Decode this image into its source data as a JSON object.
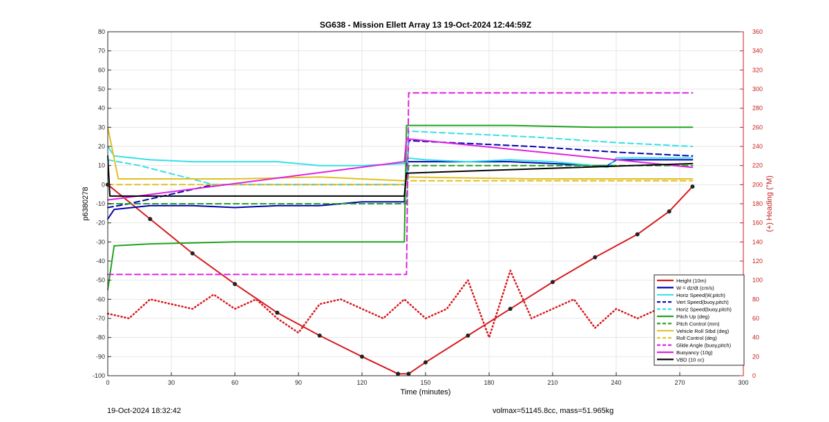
{
  "footer": {
    "timestamp": "19-Oct-2024 18:32:42",
    "volmax_mass": "volmax=51145.8cc, mass=51.965kg"
  },
  "chart_data": {
    "type": "line",
    "title": "SG638 - Mission Ellett Array 13 19-Oct-2024 12:44:59Z",
    "xlabel": "Time (minutes)",
    "ylabel_left": "p6380278",
    "ylabel_right": "(+) Heading (°M)",
    "xlim": [
      0,
      300
    ],
    "ylim_left": [
      -100,
      80
    ],
    "ylim_right": [
      0,
      360
    ],
    "xticks": [
      0,
      30,
      60,
      90,
      120,
      150,
      180,
      210,
      240,
      270,
      300
    ],
    "yticks_left": [
      80,
      70,
      60,
      50,
      40,
      30,
      20,
      10,
      0,
      -10,
      -20,
      -30,
      -40,
      -50,
      -60,
      -70,
      -80,
      -90,
      -100
    ],
    "yticks_right": [
      360,
      340,
      320,
      300,
      280,
      260,
      240,
      220,
      200,
      180,
      160,
      140,
      120,
      100,
      80,
      60,
      40,
      20,
      0
    ],
    "grid": true,
    "legend_position": "bottom-right",
    "colors": {
      "red": "#d7191c",
      "blue": "#0000b0",
      "cyan": "#33e0e8",
      "green": "#1fa21f",
      "yellow": "#e0c020",
      "magenta": "#e020e0",
      "black": "#000000",
      "heading_axis": "#c81e1e"
    },
    "series": [
      {
        "name": "Height (10m)",
        "color": "red",
        "style": "solid",
        "x": [
          0,
          20,
          40,
          60,
          80,
          100,
          120,
          137,
          142,
          150,
          170,
          190,
          210,
          230,
          250,
          265,
          276
        ],
        "y": [
          0,
          -18,
          -36,
          -52,
          -67,
          -79,
          -90,
          -99,
          -99,
          -93,
          -79,
          -65,
          -51,
          -38,
          -26,
          -14,
          -1
        ]
      },
      {
        "name": "W = dz/dt (cm/s)",
        "color": "blue",
        "style": "solid",
        "x": [
          0,
          3,
          20,
          40,
          60,
          80,
          100,
          120,
          140,
          141,
          150,
          170,
          190,
          210,
          230,
          236,
          240,
          276
        ],
        "y": [
          -18,
          -13,
          -11,
          -11,
          -12,
          -11,
          -11,
          -9,
          -9,
          12,
          12,
          12,
          12,
          11,
          10,
          10,
          13,
          13
        ]
      },
      {
        "name": "Horiz Speed(W,pitch)",
        "color": "cyan",
        "style": "solid",
        "x": [
          0,
          3,
          20,
          40,
          60,
          80,
          100,
          120,
          140,
          141,
          150,
          170,
          190,
          210,
          230,
          236,
          240,
          276
        ],
        "y": [
          20,
          15,
          13,
          12,
          12,
          12,
          10,
          10,
          11,
          14,
          13,
          12,
          13,
          12,
          10,
          9,
          14,
          14
        ]
      },
      {
        "name": "Vert Speed(buoy,pitch)",
        "color": "blue",
        "style": "dashed",
        "x": [
          0,
          10,
          50,
          141,
          142,
          200,
          240,
          276
        ],
        "y": [
          -12,
          -10,
          0,
          0,
          23,
          20,
          17,
          15
        ]
      },
      {
        "name": "Horiz Speed(buoy,pitch)",
        "color": "cyan",
        "style": "dashed",
        "x": [
          0,
          15,
          50,
          141,
          142,
          200,
          240,
          276
        ],
        "y": [
          13,
          10,
          0,
          0,
          28,
          25,
          22,
          20
        ]
      },
      {
        "name": "Pitch Up (deg)",
        "color": "green",
        "style": "solid",
        "x": [
          0,
          3,
          20,
          60,
          100,
          140,
          141,
          150,
          190,
          230,
          276
        ],
        "y": [
          -55,
          -32,
          -31,
          -30,
          -30,
          -30,
          31,
          31,
          31,
          30,
          30
        ]
      },
      {
        "name": "Pitch Control (mm)",
        "color": "green",
        "style": "dashed",
        "x": [
          0,
          141,
          142,
          276
        ],
        "y": [
          -10,
          -10,
          10,
          10
        ]
      },
      {
        "name": "Vehicle Roll Stbd (deg)",
        "color": "yellow",
        "style": "solid",
        "x": [
          0,
          5,
          20,
          60,
          100,
          140,
          141,
          200,
          276
        ],
        "y": [
          30,
          3,
          3,
          3,
          4,
          2,
          4,
          3,
          3
        ]
      },
      {
        "name": "Roll Control (deg)",
        "color": "yellow",
        "style": "dashed",
        "x": [
          0,
          5,
          141,
          142,
          276
        ],
        "y": [
          0,
          0,
          0,
          2,
          2
        ]
      },
      {
        "name": "Glide Angle (buoy,pitch)",
        "color": "magenta",
        "style": "dashed",
        "x": [
          0,
          141,
          142,
          276
        ],
        "y": [
          -47,
          -47,
          48,
          48
        ]
      },
      {
        "name": "Buoyancy (10g)",
        "color": "magenta",
        "style": "solid",
        "x": [
          0,
          140,
          141,
          276
        ],
        "y": [
          -8,
          12,
          24,
          9
        ]
      },
      {
        "name": "VBD (10 cc)",
        "color": "black",
        "style": "solid",
        "x": [
          0,
          1,
          140,
          141,
          276
        ],
        "y": [
          15,
          -6,
          -6,
          6,
          11
        ]
      },
      {
        "name": "Heading",
        "color": "red",
        "style": "dotted",
        "axis": "right",
        "x": [
          0,
          10,
          20,
          30,
          40,
          50,
          60,
          70,
          80,
          90,
          100,
          110,
          120,
          130,
          140,
          150,
          160,
          170,
          180,
          190,
          200,
          210,
          220,
          230,
          240,
          250,
          260,
          270,
          276
        ],
        "y": [
          65,
          60,
          80,
          75,
          70,
          85,
          70,
          80,
          60,
          45,
          75,
          80,
          70,
          60,
          80,
          60,
          70,
          100,
          40,
          110,
          60,
          70,
          80,
          50,
          70,
          60,
          70,
          70,
          65
        ]
      }
    ]
  }
}
